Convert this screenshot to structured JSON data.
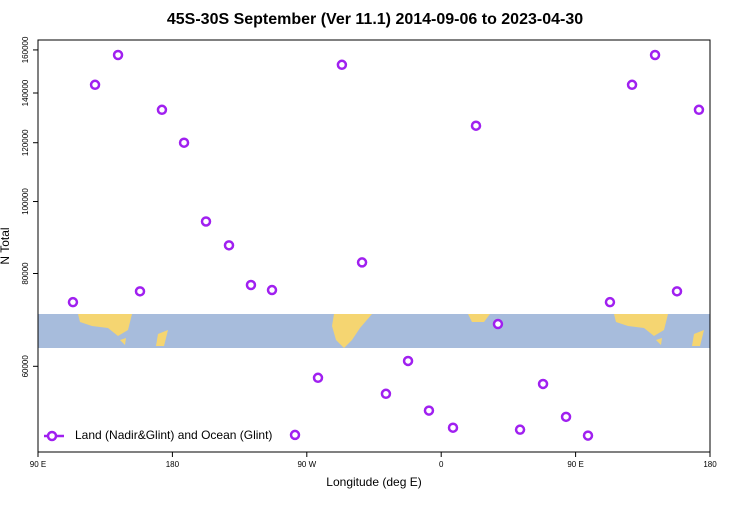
{
  "chart_data": {
    "type": "scatter",
    "title": "45S-30S September (Ver 11.1)   2014-09-06 to 2023-04-30",
    "x_label": "Longitude (deg E)",
    "y_label": "N Total",
    "y_scale": "log",
    "legend": "bottom-left",
    "xlim": [
      90,
      540
    ],
    "ylim": [
      46000,
      165000
    ],
    "xticks": [
      {
        "value": 90,
        "label": "90 E"
      },
      {
        "value": 180,
        "label": "180"
      },
      {
        "value": 270,
        "label": "90 W"
      },
      {
        "value": 360,
        "label": "0"
      },
      {
        "value": 450,
        "label": "90 E"
      },
      {
        "value": 540,
        "label": "180"
      }
    ],
    "yticks": [
      60000,
      80000,
      100000,
      120000,
      140000,
      160000
    ],
    "series": [
      {
        "name": "Land (Nadir&Glint) and Ocean (Glint)",
        "color": "#a020f0",
        "x": [
          113.4,
          128.2,
          143.6,
          158.3,
          173.0,
          187.8,
          202.5,
          217.9,
          232.6,
          246.7,
          262.1,
          277.5,
          293.5,
          307.0,
          323.0,
          337.8,
          351.8,
          367.9,
          383.3,
          398.0,
          412.8,
          428.2,
          443.6,
          458.3,
          473.0,
          487.8,
          503.2,
          517.9,
          532.6
        ],
        "values": [
          73200,
          143600,
          157500,
          75700,
          132900,
          120000,
          94000,
          87300,
          77200,
          76000,
          48500,
          57900,
          152800,
          82800,
          55100,
          61000,
          52300,
          49600,
          126500,
          68400,
          49300,
          56800,
          51300,
          48400,
          73200,
          143600,
          157500,
          75700,
          132900
        ]
      }
    ]
  }
}
